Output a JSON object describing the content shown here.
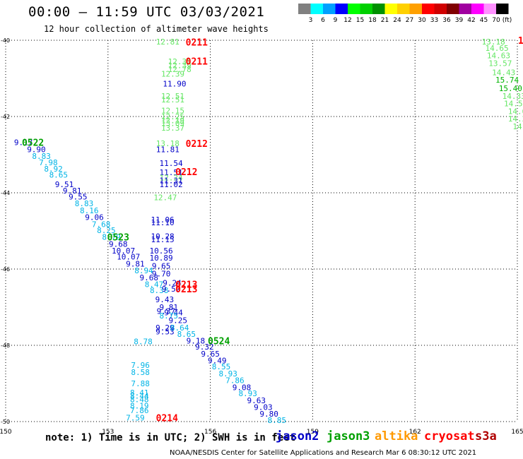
{
  "header": {
    "title": "00:00 – 11:59 UTC 03/03/2021",
    "subtitle": "12 hour collection of altimeter wave heights"
  },
  "footer": {
    "note": "note: 1) Time is in UTC; 2) SWH is in feet",
    "credit": "NOAA/NESDIS Center for Satellite Applications and Research   Mar  6 08:30:12 UTC 2021"
  },
  "colors": {
    "jason2": "#0000c8",
    "jason3": "#00a000",
    "altika": "#ff9900",
    "cryosat": "#ff0000",
    "s3a": "#b00000",
    "swh_cyan": "#00b4e6",
    "swh_lightgreen": "#64e664",
    "swh_green": "#00b400"
  },
  "legend": {
    "satellites": [
      {
        "name": "jason2",
        "color": "#0000c8"
      },
      {
        "name": "jason3",
        "color": "#00a000"
      },
      {
        "name": "altika",
        "color": "#ff9900"
      },
      {
        "name": "cryosat",
        "color": "#ff0000"
      },
      {
        "name": "s3a",
        "color": "#b00000"
      }
    ],
    "colorbar": {
      "labels": [
        "3",
        "6",
        "9",
        "12",
        "15",
        "18",
        "21",
        "24",
        "27",
        "30",
        "33",
        "36",
        "39",
        "42",
        "45",
        "70"
      ],
      "unit": "(ft)",
      "colors": [
        "#808080",
        "#00ffff",
        "#00a0ff",
        "#0000ff",
        "#00ff00",
        "#00d000",
        "#009000",
        "#ffff00",
        "#ffd000",
        "#ffa000",
        "#ff0000",
        "#d00000",
        "#800000",
        "#a000a0",
        "#ff00ff",
        "#ff90ff",
        "#000000"
      ]
    }
  },
  "chart_data": {
    "type": "scatter",
    "title": "00:00 – 11:59 UTC 03/03/2021",
    "subtitle": "12 hour collection of altimeter wave heights",
    "xlim": [
      150,
      165
    ],
    "ylim": [
      -50,
      -40
    ],
    "x_ticks": [
      150,
      153,
      156,
      159,
      162,
      165
    ],
    "y_ticks": [
      -40,
      -42,
      -44,
      -46,
      -48,
      -50
    ],
    "x_tick_labels": [
      "150",
      "153",
      "156",
      "159",
      "162",
      "165"
    ],
    "y_tick_labels": [
      "-40",
      "-42",
      "-44",
      "-46",
      "-48",
      "-50"
    ],
    "grid": true,
    "points": [
      {
        "x": 150.52,
        "y": -42.68,
        "label": "9.17",
        "color": "#0000c8"
      },
      {
        "x": 150.9,
        "y": -42.86,
        "label": "9.90",
        "color": "#0000c8"
      },
      {
        "x": 151.05,
        "y": -43.04,
        "label": "8.83",
        "color": "#00b4e6"
      },
      {
        "x": 151.25,
        "y": -43.2,
        "label": "7.98",
        "color": "#00b4e6"
      },
      {
        "x": 151.4,
        "y": -43.37,
        "label": "8.92",
        "color": "#00b4e6"
      },
      {
        "x": 151.55,
        "y": -43.53,
        "label": "8.65",
        "color": "#00b4e6"
      },
      {
        "x": 151.72,
        "y": -43.78,
        "label": "9.51",
        "color": "#0000c8"
      },
      {
        "x": 151.95,
        "y": -43.94,
        "label": "9.81",
        "color": "#0000c8"
      },
      {
        "x": 152.12,
        "y": -44.1,
        "label": "9.55",
        "color": "#0000c8"
      },
      {
        "x": 152.3,
        "y": -44.28,
        "label": "8.83",
        "color": "#00b4e6"
      },
      {
        "x": 152.45,
        "y": -44.46,
        "label": "8.16",
        "color": "#00b4e6"
      },
      {
        "x": 152.6,
        "y": -44.64,
        "label": "9.06",
        "color": "#0000c8"
      },
      {
        "x": 152.8,
        "y": -44.82,
        "label": "7.68",
        "color": "#00b4e6"
      },
      {
        "x": 152.95,
        "y": -44.98,
        "label": "8.25",
        "color": "#00b4e6"
      },
      {
        "x": 153.1,
        "y": -45.16,
        "label": "8.79",
        "color": "#00b4e6"
      },
      {
        "x": 153.3,
        "y": -45.34,
        "label": "9.68",
        "color": "#0000c8"
      },
      {
        "x": 153.45,
        "y": -45.52,
        "label": "10.07",
        "color": "#0000c8"
      },
      {
        "x": 153.6,
        "y": -45.68,
        "label": "10.07",
        "color": "#0000c8"
      },
      {
        "x": 153.8,
        "y": -45.86,
        "label": "9.81",
        "color": "#0000c8"
      },
      {
        "x": 154.05,
        "y": -46.04,
        "label": "8.94",
        "color": "#00b4e6"
      },
      {
        "x": 154.2,
        "y": -46.22,
        "label": "9.68",
        "color": "#0000c8"
      },
      {
        "x": 154.35,
        "y": -46.4,
        "label": "8.47",
        "color": "#00b4e6"
      },
      {
        "x": 154.5,
        "y": -46.56,
        "label": "8.38",
        "color": "#00b4e6"
      },
      {
        "x": 154.88,
        "y": -46.36,
        "label": "9.24",
        "color": "#0000c8"
      },
      {
        "x": 154.85,
        "y": -46.52,
        "label": "9.52",
        "color": "#0000c8"
      },
      {
        "x": 154.66,
        "y": -46.8,
        "label": "9.43",
        "color": "#0000c8"
      },
      {
        "x": 154.78,
        "y": -47.0,
        "label": "9.81",
        "color": "#0000c8"
      },
      {
        "x": 154.7,
        "y": -47.1,
        "label": "9.37",
        "color": "#0000c8"
      },
      {
        "x": 154.92,
        "y": -47.14,
        "label": "9.44",
        "color": "#0000c8"
      },
      {
        "x": 154.78,
        "y": -47.22,
        "label": "8.75",
        "color": "#00b4e6"
      },
      {
        "x": 155.05,
        "y": -47.34,
        "label": "9.25",
        "color": "#0000c8"
      },
      {
        "x": 154.67,
        "y": -47.54,
        "label": "9.29",
        "color": "#0000c8"
      },
      {
        "x": 154.67,
        "y": -47.64,
        "label": "9.53",
        "color": "#0000c8"
      },
      {
        "x": 155.1,
        "y": -47.54,
        "label": "8.64",
        "color": "#00b4e6"
      },
      {
        "x": 155.3,
        "y": -47.7,
        "label": "8.65",
        "color": "#00b4e6"
      },
      {
        "x": 155.57,
        "y": -47.88,
        "label": "9.18",
        "color": "#0000c8"
      },
      {
        "x": 155.83,
        "y": -48.04,
        "label": "9.32",
        "color": "#0000c8"
      },
      {
        "x": 156.0,
        "y": -48.22,
        "label": "9.65",
        "color": "#0000c8"
      },
      {
        "x": 156.2,
        "y": -48.4,
        "label": "9.49",
        "color": "#0000c8"
      },
      {
        "x": 156.32,
        "y": -48.56,
        "label": "8.55",
        "color": "#00b4e6"
      },
      {
        "x": 156.52,
        "y": -48.74,
        "label": "8.93",
        "color": "#00b4e6"
      },
      {
        "x": 156.72,
        "y": -48.92,
        "label": "7.86",
        "color": "#00b4e6"
      },
      {
        "x": 156.92,
        "y": -49.1,
        "label": "9.08",
        "color": "#0000c8"
      },
      {
        "x": 157.1,
        "y": -49.26,
        "label": "8.93",
        "color": "#00b4e6"
      },
      {
        "x": 157.35,
        "y": -49.44,
        "label": "9.63",
        "color": "#0000c8"
      },
      {
        "x": 157.55,
        "y": -49.62,
        "label": "9.03",
        "color": "#0000c8"
      },
      {
        "x": 157.72,
        "y": -49.8,
        "label": "9.80",
        "color": "#0000c8"
      },
      {
        "x": 157.95,
        "y": -49.96,
        "label": "8.85",
        "color": "#00b4e6"
      },
      {
        "x": 154.03,
        "y": -47.9,
        "label": "8.78",
        "color": "#00b4e6"
      },
      {
        "x": 153.95,
        "y": -48.52,
        "label": "7.96",
        "color": "#00b4e6"
      },
      {
        "x": 153.95,
        "y": -48.7,
        "label": "8.58",
        "color": "#00b4e6"
      },
      {
        "x": 153.95,
        "y": -49.0,
        "label": "7.88",
        "color": "#00b4e6"
      },
      {
        "x": 153.92,
        "y": -49.24,
        "label": "8.41",
        "color": "#00b4e6"
      },
      {
        "x": 153.92,
        "y": -49.32,
        "label": "8.44",
        "color": "#00b4e6"
      },
      {
        "x": 153.92,
        "y": -49.42,
        "label": "8.48",
        "color": "#00b4e6"
      },
      {
        "x": 153.92,
        "y": -49.58,
        "label": "8.19",
        "color": "#00b4e6"
      },
      {
        "x": 153.92,
        "y": -49.7,
        "label": "7.86",
        "color": "#00b4e6"
      },
      {
        "x": 153.8,
        "y": -49.9,
        "label": "7.59",
        "color": "#00b4e6"
      },
      {
        "x": 154.75,
        "y": -40.04,
        "label": "12.81",
        "color": "#64e664"
      },
      {
        "x": 155.1,
        "y": -40.56,
        "label": "12.35",
        "color": "#64e664"
      },
      {
        "x": 155.1,
        "y": -40.66,
        "label": "12.39",
        "color": "#64e664"
      },
      {
        "x": 155.1,
        "y": -40.76,
        "label": "12.78",
        "color": "#64e664"
      },
      {
        "x": 154.9,
        "y": -40.88,
        "label": "12.39",
        "color": "#64e664"
      },
      {
        "x": 154.95,
        "y": -41.14,
        "label": "11.90",
        "color": "#0000c8"
      },
      {
        "x": 154.9,
        "y": -41.46,
        "label": "12.51",
        "color": "#64e664"
      },
      {
        "x": 154.9,
        "y": -41.56,
        "label": "12.51",
        "color": "#64e664"
      },
      {
        "x": 154.9,
        "y": -41.84,
        "label": "12.15",
        "color": "#64e664"
      },
      {
        "x": 154.9,
        "y": -42.0,
        "label": "12.25",
        "color": "#64e664"
      },
      {
        "x": 154.9,
        "y": -42.1,
        "label": "12.19",
        "color": "#64e664"
      },
      {
        "x": 154.9,
        "y": -42.18,
        "label": "13.09",
        "color": "#64e664"
      },
      {
        "x": 154.9,
        "y": -42.3,
        "label": "13.37",
        "color": "#64e664"
      },
      {
        "x": 154.75,
        "y": -42.7,
        "label": "13.18",
        "color": "#64e664"
      },
      {
        "x": 154.75,
        "y": -42.86,
        "label": "11.81",
        "color": "#0000c8"
      },
      {
        "x": 154.85,
        "y": -43.22,
        "label": "11.54",
        "color": "#0000c8"
      },
      {
        "x": 154.85,
        "y": -43.46,
        "label": "11.51",
        "color": "#0000c8"
      },
      {
        "x": 154.85,
        "y": -43.6,
        "label": "12.24",
        "color": "#64e664"
      },
      {
        "x": 154.85,
        "y": -43.68,
        "label": "11.31",
        "color": "#0000c8"
      },
      {
        "x": 154.85,
        "y": -43.78,
        "label": "11.02",
        "color": "#0000c8"
      },
      {
        "x": 154.68,
        "y": -44.12,
        "label": "12.47",
        "color": "#64e664"
      },
      {
        "x": 154.6,
        "y": -44.7,
        "label": "11.06",
        "color": "#0000c8"
      },
      {
        "x": 154.6,
        "y": -44.78,
        "label": "11.10",
        "color": "#0000c8"
      },
      {
        "x": 154.6,
        "y": -45.14,
        "label": "10.28",
        "color": "#0000c8"
      },
      {
        "x": 154.6,
        "y": -45.22,
        "label": "11.15",
        "color": "#0000c8"
      },
      {
        "x": 154.56,
        "y": -45.52,
        "label": "10.56",
        "color": "#0000c8"
      },
      {
        "x": 154.56,
        "y": -45.7,
        "label": "10.89",
        "color": "#0000c8"
      },
      {
        "x": 154.56,
        "y": -45.92,
        "label": "9.65",
        "color": "#0000c8"
      },
      {
        "x": 154.56,
        "y": -46.12,
        "label": "9.70",
        "color": "#0000c8"
      },
      {
        "x": 164.3,
        "y": -40.04,
        "label": "13.18",
        "color": "#64e664"
      },
      {
        "x": 164.4,
        "y": -40.2,
        "label": "14.65",
        "color": "#64e664"
      },
      {
        "x": 164.45,
        "y": -40.4,
        "label": "14.63",
        "color": "#64e664"
      },
      {
        "x": 164.5,
        "y": -40.6,
        "label": "13.57",
        "color": "#64e664"
      },
      {
        "x": 164.6,
        "y": -40.84,
        "label": "14.43",
        "color": "#64e664"
      },
      {
        "x": 164.7,
        "y": -41.04,
        "label": "15.74",
        "color": "#00b400"
      },
      {
        "x": 164.8,
        "y": -41.26,
        "label": "15.40",
        "color": "#00b400"
      },
      {
        "x": 164.9,
        "y": -41.46,
        "label": "14.33",
        "color": "#64e664"
      },
      {
        "x": 164.95,
        "y": -41.66,
        "label": "14.51",
        "color": "#64e664"
      },
      {
        "x": 165.0,
        "y": -41.86,
        "label": "14.6",
        "color": "#64e664"
      },
      {
        "x": 165.0,
        "y": -42.06,
        "label": "14.2",
        "color": "#64e664"
      },
      {
        "x": 165.0,
        "y": -42.26,
        "label": "14",
        "color": "#64e664"
      }
    ],
    "annotations": [
      {
        "x": 155.6,
        "y": -40.05,
        "text": "0211",
        "color": "#ff0000"
      },
      {
        "x": 155.6,
        "y": -40.55,
        "text": "0211",
        "color": "#ff0000"
      },
      {
        "x": 155.6,
        "y": -42.7,
        "text": "0212",
        "color": "#ff0000"
      },
      {
        "x": 155.3,
        "y": -43.44,
        "text": "0212",
        "color": "#ff0000"
      },
      {
        "x": 155.3,
        "y": -46.4,
        "text": "0213",
        "color": "#ff0000"
      },
      {
        "x": 155.3,
        "y": -46.52,
        "text": "0213",
        "color": "#ff0000"
      },
      {
        "x": 154.73,
        "y": -49.9,
        "text": "0214",
        "color": "#ff0000"
      },
      {
        "x": 150.8,
        "y": -42.68,
        "text": "0522",
        "color": "#00a000"
      },
      {
        "x": 153.3,
        "y": -45.16,
        "text": "0523",
        "color": "#00a000"
      },
      {
        "x": 156.25,
        "y": -47.88,
        "text": "0524",
        "color": "#00a000"
      },
      {
        "x": 165.1,
        "y": -40.0,
        "text": "1",
        "color": "#ff0000"
      }
    ]
  }
}
